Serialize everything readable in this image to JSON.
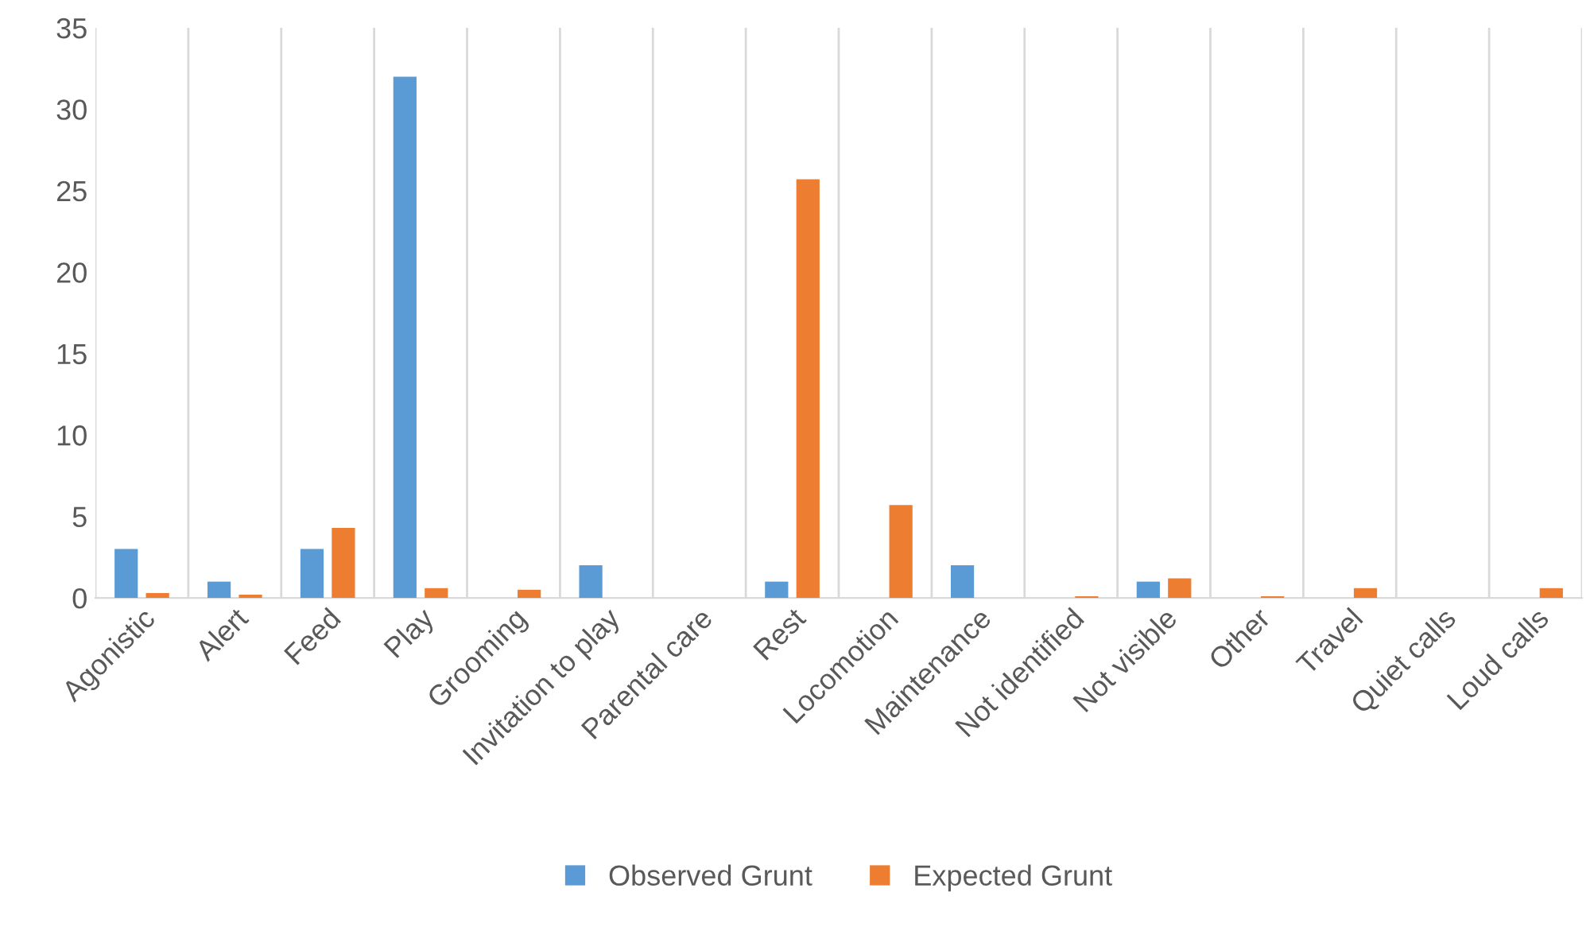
{
  "chart_data": {
    "type": "bar",
    "categories": [
      "Agonistic",
      "Alert",
      "Feed",
      "Play",
      "Grooming",
      "Invitation to play",
      "Parental care",
      "Rest",
      "Locomotion",
      "Maintenance",
      "Not identified",
      "Not visible",
      "Other",
      "Travel",
      "Quiet calls",
      "Loud calls"
    ],
    "series": [
      {
        "name": "Observed Grunt",
        "color": "#5b9bd5",
        "values": [
          3,
          1,
          3,
          32,
          0,
          2,
          0,
          1,
          0,
          2,
          0,
          1,
          0,
          0,
          0,
          0
        ]
      },
      {
        "name": "Expected Grunt",
        "color": "#ed7d31",
        "values": [
          0.3,
          0.2,
          4.3,
          0.6,
          0.5,
          0,
          0,
          25.7,
          5.7,
          0,
          0.1,
          1.2,
          0.1,
          0.6,
          0,
          0.6
        ]
      }
    ],
    "ylim": [
      0,
      35
    ],
    "yticks": [
      0,
      5,
      10,
      15,
      20,
      25,
      30,
      35
    ],
    "grid": "x",
    "legend": "bottom"
  }
}
